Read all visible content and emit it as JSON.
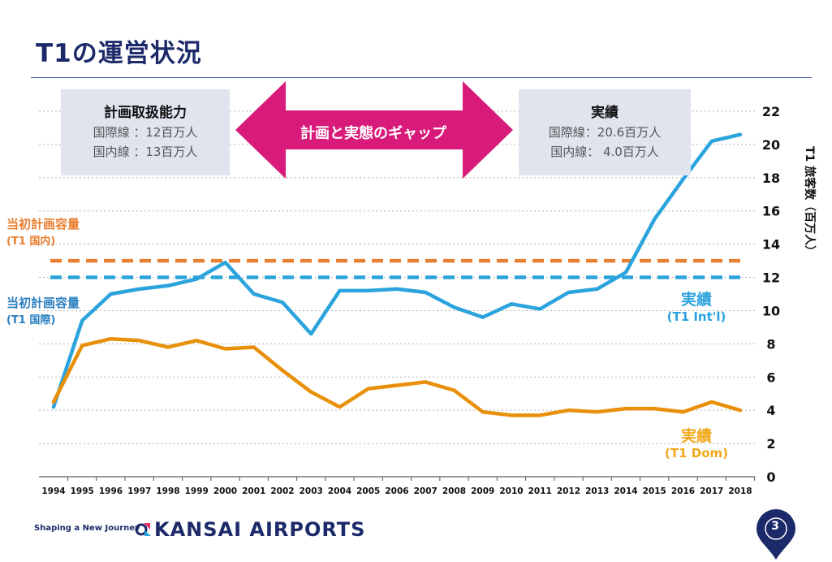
{
  "title": "T1の運営状況",
  "plan_box": {
    "heading": "計画取扱能力",
    "line1": "国際線 ：12百万人",
    "line2": "国内線 ：13百万人"
  },
  "gap_arrow_label": "計画と実態のギャップ",
  "actual_box": {
    "heading": "実績",
    "line1": "国際線：20.6百万人",
    "line2": "国内線： 4.0百万人"
  },
  "planned_dom_label": "当初計画容量",
  "planned_dom_sub": "(T1 国内)",
  "planned_intl_label": "当初計画容量",
  "planned_intl_sub": "(T1 国際)",
  "intl_series_label": "実績",
  "intl_series_sub": "(T1 Int'l)",
  "dom_series_label": "実績",
  "dom_series_sub": "(T1 Dom)",
  "footer_tagline": "Shaping a New Journey",
  "brand": "KANSAI AIRPORTS",
  "page_number": "3",
  "colors": {
    "title": "#1d2a6a",
    "intl": "#2ba3dc",
    "dom": "#e8900a",
    "planned_dom": "#e97f30",
    "planned_intl": "#2ba3dc",
    "arrow": "#d81b7a",
    "box": "#dfe4ef",
    "brand_navy": "#1d2a6a"
  },
  "chart_data": {
    "type": "line",
    "x": [
      1994,
      1995,
      1996,
      1997,
      1998,
      1999,
      2000,
      2001,
      2002,
      2003,
      2004,
      2005,
      2006,
      2007,
      2008,
      2009,
      2010,
      2011,
      2012,
      2013,
      2014,
      2015,
      2016,
      2017,
      2018
    ],
    "series": [
      {
        "name": "実績 (T1 Int'l)",
        "values": [
          4.2,
          9.4,
          11.0,
          11.3,
          11.5,
          11.9,
          12.9,
          11.0,
          10.5,
          8.6,
          11.2,
          11.2,
          11.3,
          11.1,
          10.2,
          9.6,
          10.4,
          10.1,
          11.1,
          11.3,
          12.3,
          15.5,
          17.9,
          20.2,
          20.6
        ]
      },
      {
        "name": "実績 (T1 Dom)",
        "values": [
          4.5,
          7.9,
          8.3,
          8.2,
          7.8,
          8.2,
          7.7,
          7.8,
          6.4,
          5.1,
          4.2,
          5.3,
          5.5,
          5.7,
          5.2,
          3.9,
          3.7,
          3.7,
          4.0,
          3.9,
          4.1,
          4.1,
          3.9,
          4.5,
          4.0
        ]
      }
    ],
    "reference_lines": [
      {
        "name": "当初計画容量 (T1 国内)",
        "value": 13
      },
      {
        "name": "当初計画容量 (T1 国際)",
        "value": 12
      }
    ],
    "ylabel": "T1 旅客数（百万人）",
    "ylim": [
      0,
      22
    ],
    "yticks": [
      0,
      2,
      4,
      6,
      8,
      10,
      12,
      14,
      16,
      18,
      20,
      22
    ],
    "grid": true,
    "y_axis_side": "right"
  }
}
